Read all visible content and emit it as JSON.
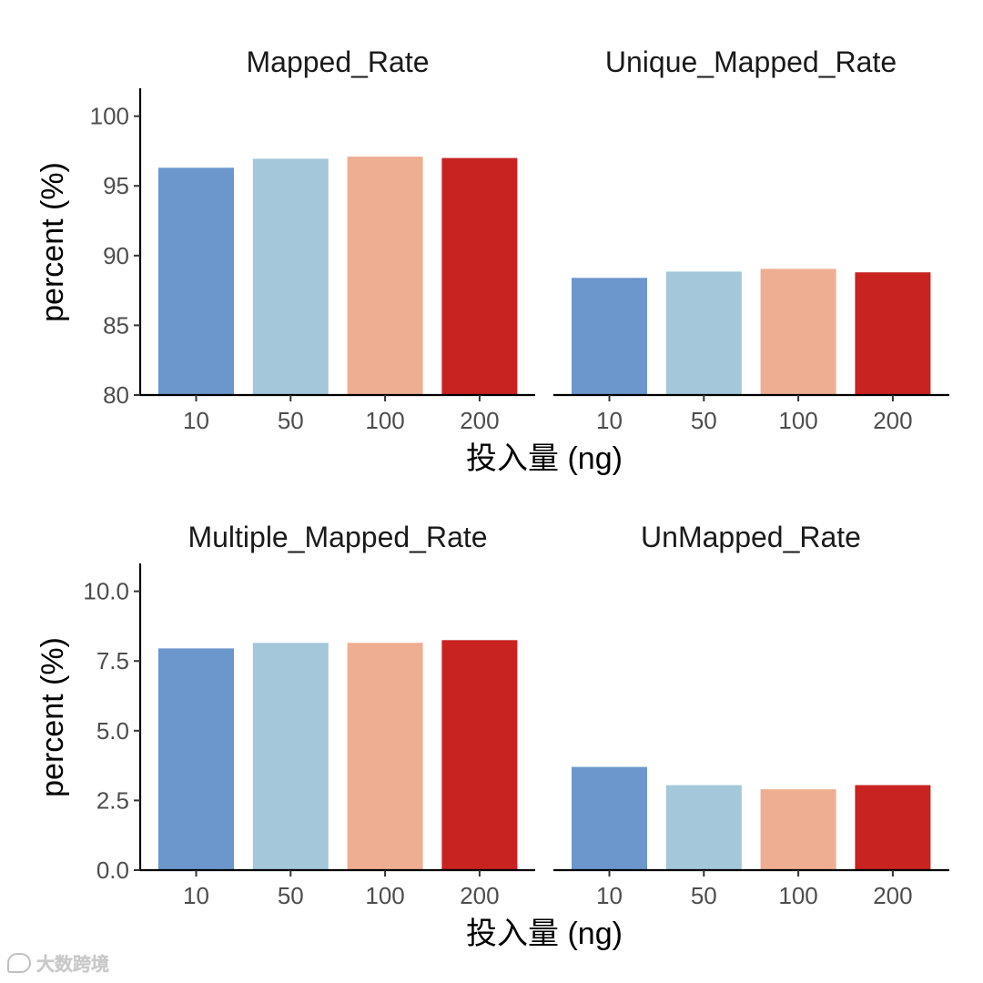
{
  "chart_data": [
    {
      "type": "bar",
      "title": "Mapped_Rate",
      "xlabel": "投入量 (ng)",
      "ylabel": "percent (%)",
      "categories": [
        "10",
        "50",
        "100",
        "200"
      ],
      "values": [
        96.3,
        96.95,
        97.1,
        97.0
      ],
      "ylim": [
        80,
        102
      ],
      "yticks": [
        "80",
        "85",
        "90",
        "95",
        "100"
      ],
      "ytick_values": [
        80,
        85,
        90,
        95,
        100
      ]
    },
    {
      "type": "bar",
      "title": "Unique_Mapped_Rate",
      "xlabel": "投入量 (ng)",
      "ylabel": "percent (%)",
      "categories": [
        "10",
        "50",
        "100",
        "200"
      ],
      "values": [
        88.4,
        88.85,
        89.05,
        88.8
      ],
      "ylim": [
        80,
        102
      ]
    },
    {
      "type": "bar",
      "title": "Multiple_Mapped_Rate",
      "xlabel": "投入量 (ng)",
      "ylabel": "percent (%)",
      "categories": [
        "10",
        "50",
        "100",
        "200"
      ],
      "values": [
        7.95,
        8.15,
        8.15,
        8.25
      ],
      "ylim": [
        0,
        11
      ],
      "yticks": [
        "0.0",
        "2.5",
        "5.0",
        "7.5",
        "10.0"
      ],
      "ytick_values": [
        0,
        2.5,
        5,
        7.5,
        10
      ]
    },
    {
      "type": "bar",
      "title": "UnMapped_Rate",
      "xlabel": "投入量 (ng)",
      "ylabel": "percent (%)",
      "categories": [
        "10",
        "50",
        "100",
        "200"
      ],
      "values": [
        3.7,
        3.05,
        2.9,
        3.05
      ],
      "ylim": [
        0,
        11
      ]
    }
  ],
  "colors": {
    "10": "#6C97CC",
    "50": "#A4C7DA",
    "100": "#EEAE92",
    "200": "#C82321"
  },
  "rows": [
    {
      "xlabel": "投入量 (ng)",
      "ylabel": "percent (%)"
    },
    {
      "xlabel": "投入量 (ng)",
      "ylabel": "percent (%)"
    }
  ],
  "watermark": {
    "text": "大数跨境",
    "icon": "chat-bubble-icon"
  }
}
